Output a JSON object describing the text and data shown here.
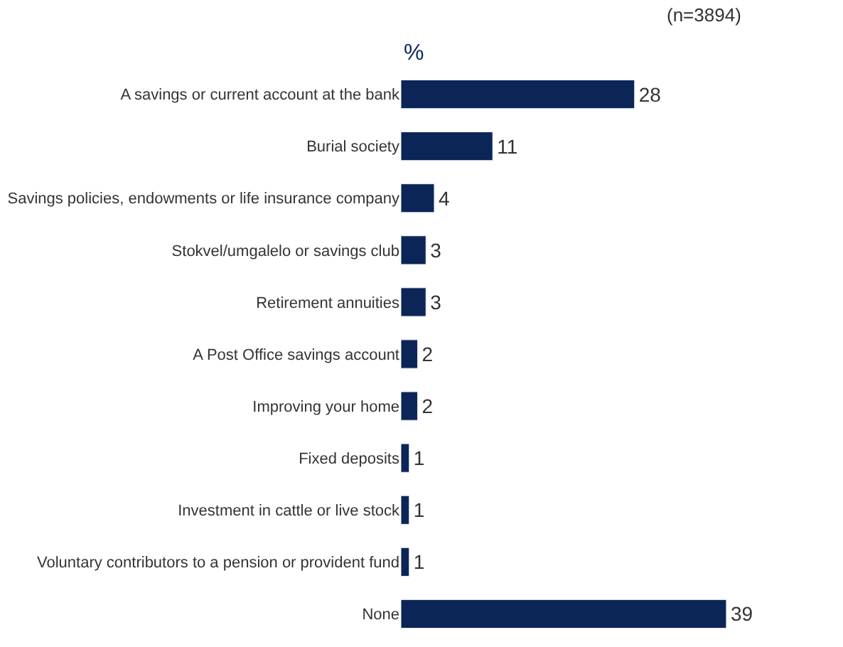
{
  "chart_data": {
    "type": "bar",
    "orientation": "horizontal",
    "title": "%",
    "annotations": [
      "(n=3894)"
    ],
    "categories": [
      "A savings or current account at the bank",
      "Burial society",
      "Savings policies, endowments or life insurance company",
      "Stokvel/umgalelo or savings club",
      "Retirement annuities",
      "A Post Office savings account",
      "Improving your home",
      "Fixed deposits",
      "Investment in cattle or live stock",
      "Voluntary contributors to a pension or provident fund",
      "None"
    ],
    "values": [
      28,
      11,
      4,
      3,
      3,
      2,
      2,
      1,
      1,
      1,
      39
    ],
    "color": "#0c2557",
    "data_labels": true,
    "tick_labels": "y"
  }
}
